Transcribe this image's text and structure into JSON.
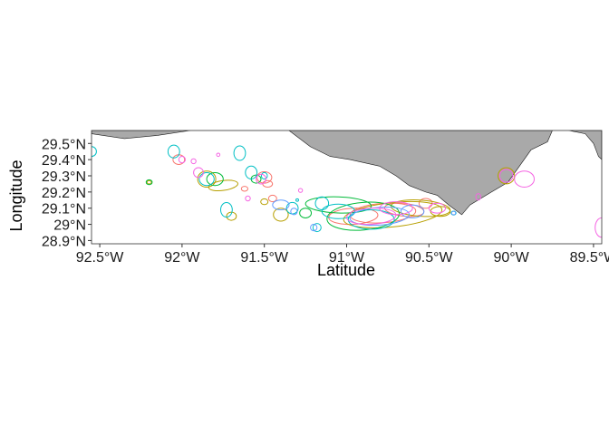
{
  "chart_data": {
    "type": "map",
    "xlabel": "Latitude",
    "ylabel": "Longitude",
    "xlim": [
      -92.55,
      -89.45
    ],
    "ylim": [
      28.88,
      29.58
    ],
    "x_ticks": [
      {
        "value": -92.5,
        "label": "92.5°W"
      },
      {
        "value": -92.0,
        "label": "92°W"
      },
      {
        "value": -91.5,
        "label": "91.5°W"
      },
      {
        "value": -91.0,
        "label": "91°W"
      },
      {
        "value": -90.5,
        "label": "90.5°W"
      },
      {
        "value": -90.0,
        "label": "90°W"
      },
      {
        "value": -89.5,
        "label": "89.5°W"
      }
    ],
    "y_ticks": [
      {
        "value": 28.9,
        "label": "28.9°N"
      },
      {
        "value": 29.0,
        "label": "29°N"
      },
      {
        "value": 29.1,
        "label": "29.1°N"
      },
      {
        "value": 29.2,
        "label": "29.2°N"
      },
      {
        "value": 29.3,
        "label": "29.3°N"
      },
      {
        "value": 29.4,
        "label": "29.4°N"
      },
      {
        "value": 29.5,
        "label": "29.5°N"
      }
    ],
    "land_color": "#a9a9a9",
    "grid": false,
    "series_colors": [
      "#F8766D",
      "#B79F00",
      "#00BA38",
      "#00BFC4",
      "#619CFF",
      "#F564E3"
    ],
    "land": [
      [
        [
          -92.55,
          29.58
        ],
        [
          -92.55,
          29.56
        ],
        [
          -92.35,
          29.53
        ],
        [
          -92.15,
          29.55
        ],
        [
          -91.95,
          29.58
        ]
      ],
      [
        [
          -91.35,
          29.58
        ],
        [
          -91.22,
          29.48
        ],
        [
          -91.1,
          29.42
        ],
        [
          -90.98,
          29.4
        ],
        [
          -90.8,
          29.36
        ],
        [
          -90.7,
          29.3
        ],
        [
          -90.62,
          29.24
        ],
        [
          -90.52,
          29.2
        ],
        [
          -90.45,
          29.18
        ],
        [
          -90.38,
          29.12
        ],
        [
          -90.3,
          29.06
        ],
        [
          -90.25,
          29.12
        ],
        [
          -90.12,
          29.2
        ],
        [
          -90.02,
          29.26
        ],
        [
          -89.95,
          29.36
        ],
        [
          -89.88,
          29.46
        ],
        [
          -89.78,
          29.51
        ],
        [
          -89.75,
          29.58
        ]
      ],
      [
        [
          -89.65,
          29.58
        ],
        [
          -89.55,
          29.56
        ],
        [
          -89.5,
          29.5
        ],
        [
          -89.47,
          29.42
        ],
        [
          -89.45,
          29.4
        ],
        [
          -89.45,
          29.58
        ]
      ]
    ],
    "home_ranges": [
      {
        "series": 0,
        "cx": -90.78,
        "cy": 29.07,
        "rx": 0.2,
        "ry": 0.06,
        "rot": -4
      },
      {
        "series": 0,
        "cx": -90.65,
        "cy": 29.09,
        "rx": 0.12,
        "ry": 0.04,
        "rot": 6
      },
      {
        "series": 0,
        "cx": -91.5,
        "cy": 29.29,
        "rx": 0.045,
        "ry": 0.035,
        "rot": 0
      },
      {
        "series": 0,
        "cx": -91.48,
        "cy": 29.25,
        "rx": 0.03,
        "ry": 0.02,
        "rot": 0
      },
      {
        "series": 0,
        "cx": -92.02,
        "cy": 29.4,
        "rx": 0.035,
        "ry": 0.03,
        "rot": 0
      },
      {
        "series": 0,
        "cx": -91.62,
        "cy": 29.22,
        "rx": 0.02,
        "ry": 0.015,
        "rot": 0
      },
      {
        "series": 0,
        "cx": -90.96,
        "cy": 29.05,
        "rx": 0.15,
        "ry": 0.05,
        "rot": -3
      },
      {
        "series": 0,
        "cx": -91.45,
        "cy": 29.16,
        "rx": 0.025,
        "ry": 0.02,
        "rot": 0
      },
      {
        "series": 0,
        "cx": -90.52,
        "cy": 29.13,
        "rx": 0.04,
        "ry": 0.03,
        "rot": 0
      },
      {
        "series": 1,
        "cx": -90.72,
        "cy": 29.06,
        "rx": 0.3,
        "ry": 0.075,
        "rot": -6
      },
      {
        "series": 1,
        "cx": -90.55,
        "cy": 29.1,
        "rx": 0.18,
        "ry": 0.05,
        "rot": 4
      },
      {
        "series": 1,
        "cx": -91.4,
        "cy": 29.06,
        "rx": 0.045,
        "ry": 0.04,
        "rot": 0
      },
      {
        "series": 1,
        "cx": -91.85,
        "cy": 29.28,
        "rx": 0.055,
        "ry": 0.05,
        "rot": 0
      },
      {
        "series": 1,
        "cx": -92.2,
        "cy": 29.26,
        "rx": 0.013,
        "ry": 0.01,
        "rot": 0
      },
      {
        "series": 1,
        "cx": -90.43,
        "cy": 29.08,
        "rx": 0.06,
        "ry": 0.03,
        "rot": 0
      },
      {
        "series": 1,
        "cx": -91.7,
        "cy": 29.05,
        "rx": 0.03,
        "ry": 0.025,
        "rot": 0
      },
      {
        "series": 1,
        "cx": -90.03,
        "cy": 29.3,
        "rx": 0.05,
        "ry": 0.05,
        "rot": 0
      },
      {
        "series": 1,
        "cx": -91.75,
        "cy": 29.24,
        "rx": 0.09,
        "ry": 0.03,
        "rot": -8
      },
      {
        "series": 1,
        "cx": -91.5,
        "cy": 29.14,
        "rx": 0.022,
        "ry": 0.018,
        "rot": 0
      },
      {
        "series": 2,
        "cx": -90.9,
        "cy": 29.05,
        "rx": 0.22,
        "ry": 0.085,
        "rot": -5
      },
      {
        "series": 2,
        "cx": -91.05,
        "cy": 29.12,
        "rx": 0.2,
        "ry": 0.05,
        "rot": 2
      },
      {
        "series": 2,
        "cx": -91.8,
        "cy": 29.28,
        "rx": 0.05,
        "ry": 0.04,
        "rot": 0
      },
      {
        "series": 2,
        "cx": -92.2,
        "cy": 29.26,
        "rx": 0.018,
        "ry": 0.015,
        "rot": 0
      },
      {
        "series": 2,
        "cx": -91.25,
        "cy": 29.07,
        "rx": 0.035,
        "ry": 0.03,
        "rot": 0
      },
      {
        "series": 2,
        "cx": -91.55,
        "cy": 29.28,
        "rx": 0.03,
        "ry": 0.025,
        "rot": 0
      },
      {
        "series": 3,
        "cx": -91.85,
        "cy": 29.28,
        "rx": 0.045,
        "ry": 0.04,
        "rot": 0
      },
      {
        "series": 3,
        "cx": -92.55,
        "cy": 29.45,
        "rx": 0.03,
        "ry": 0.03,
        "rot": 0
      },
      {
        "series": 3,
        "cx": -91.73,
        "cy": 29.09,
        "rx": 0.035,
        "ry": 0.045,
        "rot": 0
      },
      {
        "series": 3,
        "cx": -91.33,
        "cy": 29.1,
        "rx": 0.035,
        "ry": 0.035,
        "rot": 0
      },
      {
        "series": 3,
        "cx": -91.15,
        "cy": 29.13,
        "rx": 0.04,
        "ry": 0.04,
        "rot": 0
      },
      {
        "series": 3,
        "cx": -90.85,
        "cy": 29.03,
        "rx": 0.14,
        "ry": 0.06,
        "rot": 0
      },
      {
        "series": 3,
        "cx": -91.18,
        "cy": 28.98,
        "rx": 0.025,
        "ry": 0.025,
        "rot": 0
      },
      {
        "series": 3,
        "cx": -91.58,
        "cy": 29.32,
        "rx": 0.035,
        "ry": 0.04,
        "rot": 0
      },
      {
        "series": 3,
        "cx": -91.65,
        "cy": 29.44,
        "rx": 0.035,
        "ry": 0.045,
        "rot": 0
      },
      {
        "series": 3,
        "cx": -92.05,
        "cy": 29.45,
        "rx": 0.035,
        "ry": 0.04,
        "rot": 0
      },
      {
        "series": 3,
        "cx": -91.5,
        "cy": 29.3,
        "rx": 0.018,
        "ry": 0.02,
        "rot": 0
      },
      {
        "series": 3,
        "cx": -90.35,
        "cy": 29.07,
        "rx": 0.015,
        "ry": 0.012,
        "rot": 0
      },
      {
        "series": 3,
        "cx": -91.3,
        "cy": 29.15,
        "rx": 0.008,
        "ry": 0.008,
        "rot": 0
      },
      {
        "series": 3,
        "cx": -91.05,
        "cy": 29.08,
        "rx": 0.1,
        "ry": 0.045,
        "rot": 0
      },
      {
        "series": 4,
        "cx": -90.8,
        "cy": 29.05,
        "rx": 0.18,
        "ry": 0.055,
        "rot": -4
      },
      {
        "series": 4,
        "cx": -91.2,
        "cy": 28.98,
        "rx": 0.02,
        "ry": 0.02,
        "rot": 0
      },
      {
        "series": 4,
        "cx": -91.32,
        "cy": 29.08,
        "rx": 0.02,
        "ry": 0.02,
        "rot": 0
      },
      {
        "series": 4,
        "cx": -90.6,
        "cy": 29.08,
        "rx": 0.07,
        "ry": 0.04,
        "rot": 0
      },
      {
        "series": 4,
        "cx": -90.35,
        "cy": 29.07,
        "rx": 0.012,
        "ry": 0.01,
        "rot": 0
      },
      {
        "series": 4,
        "cx": -91.4,
        "cy": 29.12,
        "rx": 0.05,
        "ry": 0.03,
        "rot": 0
      },
      {
        "series": 5,
        "cx": -90.85,
        "cy": 29.05,
        "rx": 0.15,
        "ry": 0.05,
        "rot": -3
      },
      {
        "series": 5,
        "cx": -90.7,
        "cy": 29.1,
        "rx": 0.1,
        "ry": 0.04,
        "rot": 0
      },
      {
        "series": 5,
        "cx": -91.9,
        "cy": 29.32,
        "rx": 0.03,
        "ry": 0.03,
        "rot": 0
      },
      {
        "series": 5,
        "cx": -92.0,
        "cy": 29.4,
        "rx": 0.02,
        "ry": 0.02,
        "rot": 0
      },
      {
        "series": 5,
        "cx": -91.93,
        "cy": 29.39,
        "rx": 0.015,
        "ry": 0.015,
        "rot": 0
      },
      {
        "series": 5,
        "cx": -91.52,
        "cy": 29.28,
        "rx": 0.03,
        "ry": 0.03,
        "rot": 0
      },
      {
        "series": 5,
        "cx": -90.03,
        "cy": 29.3,
        "rx": 0.04,
        "ry": 0.04,
        "rot": 0
      },
      {
        "series": 5,
        "cx": -89.45,
        "cy": 28.98,
        "rx": 0.04,
        "ry": 0.06,
        "rot": 0
      },
      {
        "series": 5,
        "cx": -90.2,
        "cy": 29.17,
        "rx": 0.015,
        "ry": 0.02,
        "rot": 0
      },
      {
        "series": 5,
        "cx": -91.28,
        "cy": 29.21,
        "rx": 0.012,
        "ry": 0.012,
        "rot": 0
      },
      {
        "series": 5,
        "cx": -91.6,
        "cy": 29.16,
        "rx": 0.015,
        "ry": 0.015,
        "rot": 0
      },
      {
        "series": 5,
        "cx": -91.78,
        "cy": 29.43,
        "rx": 0.01,
        "ry": 0.01,
        "rot": 0
      },
      {
        "series": 5,
        "cx": -90.45,
        "cy": 29.1,
        "rx": 0.05,
        "ry": 0.03,
        "rot": 0
      },
      {
        "series": 5,
        "cx": -89.92,
        "cy": 29.28,
        "rx": 0.06,
        "ry": 0.05,
        "rot": 0
      }
    ]
  }
}
